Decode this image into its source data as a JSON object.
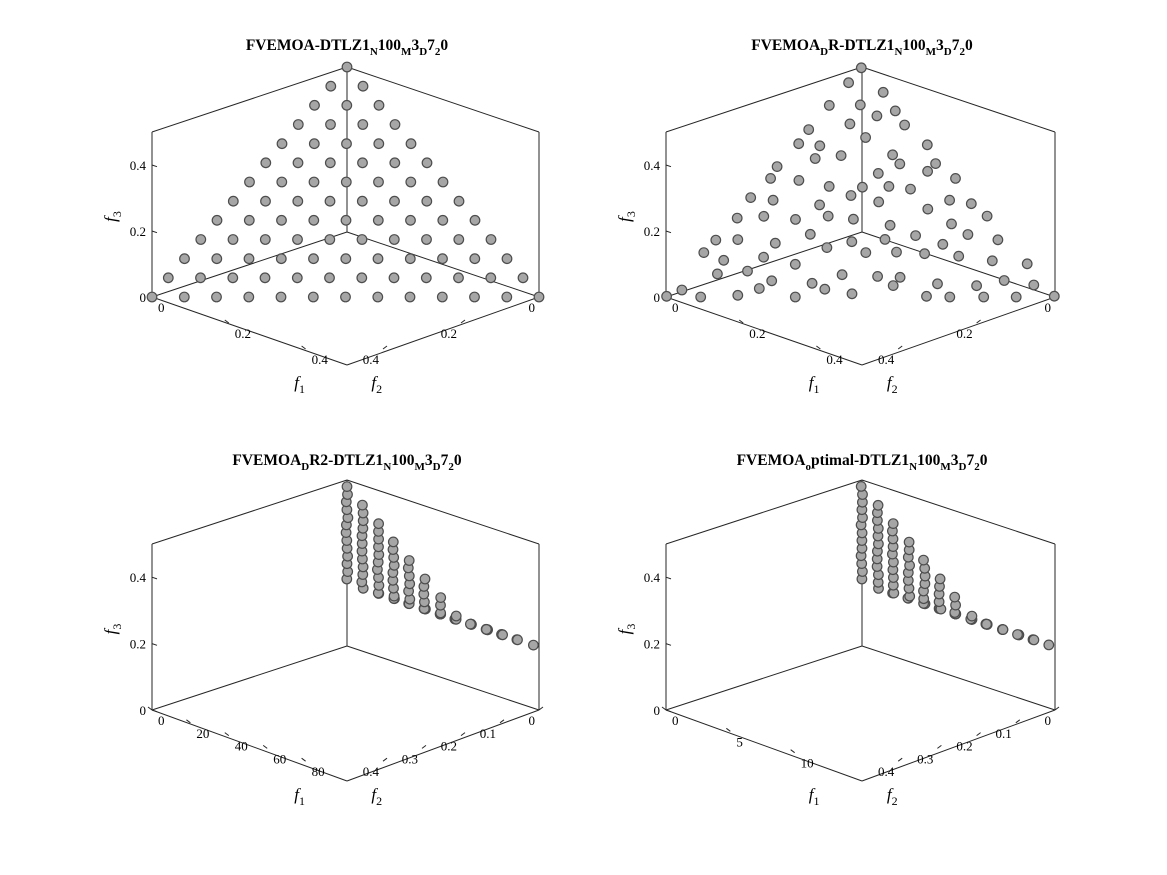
{
  "chart_data": [
    {
      "type": "scatter",
      "title": "FVEMOA-DTLZ1_N100_M3_D7_20",
      "title_parts": [
        {
          "t": "FVEMOA-DTLZ1",
          "sub": false
        },
        {
          "t": "N",
          "sub": true
        },
        {
          "t": "100",
          "sub": false
        },
        {
          "t": "M",
          "sub": true
        },
        {
          "t": "3",
          "sub": false
        },
        {
          "t": "D",
          "sub": true
        },
        {
          "t": "7",
          "sub": false
        },
        {
          "t": "2",
          "sub": true
        },
        {
          "t": "0",
          "sub": false
        }
      ],
      "xlabel": "f1",
      "ylabel": "f2",
      "zlabel": "f3",
      "xlim": [
        0,
        0.5
      ],
      "ylim": [
        0,
        0.5
      ],
      "zlim": [
        0,
        0.5
      ],
      "xticks": [
        0,
        0.2,
        0.4
      ],
      "xticklabels": [
        "0",
        "0.2",
        "0.4"
      ],
      "yticks": [
        0,
        0.2,
        0.4
      ],
      "yticklabels": [
        "0",
        "0.2",
        "0.4"
      ],
      "zticks": [
        0,
        0.2,
        0.4
      ],
      "zticklabels": [
        "0",
        "0.2",
        "0.4"
      ],
      "grid": false,
      "points": "uniform_simplex_grid_sum_0.5",
      "marker_color": "#a6a6a6",
      "marker_edge": "#4d4d4d"
    },
    {
      "type": "scatter",
      "title": "FVEMOA_DR-DTLZ1_N100_M3_D7_20",
      "title_parts": [
        {
          "t": "FVEMOA",
          "sub": false
        },
        {
          "t": "D",
          "sub": true
        },
        {
          "t": "R-DTLZ1",
          "sub": false
        },
        {
          "t": "N",
          "sub": true
        },
        {
          "t": "100",
          "sub": false
        },
        {
          "t": "M",
          "sub": true
        },
        {
          "t": "3",
          "sub": false
        },
        {
          "t": "D",
          "sub": true
        },
        {
          "t": "7",
          "sub": false
        },
        {
          "t": "2",
          "sub": true
        },
        {
          "t": "0",
          "sub": false
        }
      ],
      "xlabel": "f1",
      "ylabel": "f2",
      "zlabel": "f3",
      "xlim": [
        0,
        0.5
      ],
      "ylim": [
        0,
        0.5
      ],
      "zlim": [
        0,
        0.5
      ],
      "xticks": [
        0,
        0.2,
        0.4
      ],
      "xticklabels": [
        "0",
        "0.2",
        "0.4"
      ],
      "yticks": [
        0,
        0.2,
        0.4
      ],
      "yticklabels": [
        "0",
        "0.2",
        "0.4"
      ],
      "zticks": [
        0,
        0.2,
        0.4
      ],
      "zticklabels": [
        "0",
        "0.2",
        "0.4"
      ],
      "grid": false,
      "points": "scattered_simplex_sum_0.5",
      "marker_color": "#a6a6a6",
      "marker_edge": "#4d4d4d"
    },
    {
      "type": "scatter",
      "title": "FVEMOA_DR2-DTLZ1_N100_M3_D7_20",
      "title_parts": [
        {
          "t": "FVEMOA",
          "sub": false
        },
        {
          "t": "D",
          "sub": true
        },
        {
          "t": "R2-DTLZ1",
          "sub": false
        },
        {
          "t": "N",
          "sub": true
        },
        {
          "t": "100",
          "sub": false
        },
        {
          "t": "M",
          "sub": true
        },
        {
          "t": "3",
          "sub": false
        },
        {
          "t": "D",
          "sub": true
        },
        {
          "t": "7",
          "sub": false
        },
        {
          "t": "2",
          "sub": true
        },
        {
          "t": "0",
          "sub": false
        }
      ],
      "xlabel": "f1",
      "ylabel": "f2",
      "zlabel": "f3",
      "xlim": [
        0,
        100
      ],
      "ylim": [
        0,
        0.5
      ],
      "zlim": [
        0,
        0.5
      ],
      "xticks": [
        0,
        20,
        40,
        60,
        80
      ],
      "xticklabels": [
        "0",
        "20",
        "40",
        "60",
        "80"
      ],
      "yticks": [
        0,
        0.1,
        0.2,
        0.3,
        0.4
      ],
      "yticklabels": [
        "0",
        "0.1",
        "0.2",
        "0.3",
        "0.4"
      ],
      "zticks": [
        0,
        0.2,
        0.4
      ],
      "zticklabels": [
        "0",
        "0.2",
        "0.4"
      ],
      "grid": false,
      "points": "triangle_in_f1_f3_plane_f2_approx_0",
      "marker_color": "#a6a6a6",
      "marker_edge": "#4d4d4d"
    },
    {
      "type": "scatter",
      "title": "FVEMOA_optimal-DTLZ1_N100_M3_D7_20",
      "title_parts": [
        {
          "t": "FVEMOA",
          "sub": false
        },
        {
          "t": "o",
          "sub": true
        },
        {
          "t": "ptimal-DTLZ1",
          "sub": false
        },
        {
          "t": "N",
          "sub": true
        },
        {
          "t": "100",
          "sub": false
        },
        {
          "t": "M",
          "sub": true
        },
        {
          "t": "3",
          "sub": false
        },
        {
          "t": "D",
          "sub": true
        },
        {
          "t": "7",
          "sub": false
        },
        {
          "t": "2",
          "sub": true
        },
        {
          "t": "0",
          "sub": false
        }
      ],
      "xlabel": "f1",
      "ylabel": "f2",
      "zlabel": "f3",
      "xlim": [
        0,
        15
      ],
      "ylim": [
        0,
        0.5
      ],
      "zlim": [
        0,
        0.5
      ],
      "xticks": [
        0,
        5,
        10
      ],
      "xticklabels": [
        "0",
        "5",
        "10"
      ],
      "yticks": [
        0,
        0.1,
        0.2,
        0.3,
        0.4
      ],
      "yticklabels": [
        "0",
        "0.1",
        "0.2",
        "0.3",
        "0.4"
      ],
      "zticks": [
        0,
        0.2,
        0.4
      ],
      "zticklabels": [
        "0",
        "0.2",
        "0.4"
      ],
      "grid": false,
      "points": "triangle_in_f1_f3_plane_f2_approx_0",
      "marker_color": "#a6a6a6",
      "marker_edge": "#4d4d4d"
    }
  ]
}
